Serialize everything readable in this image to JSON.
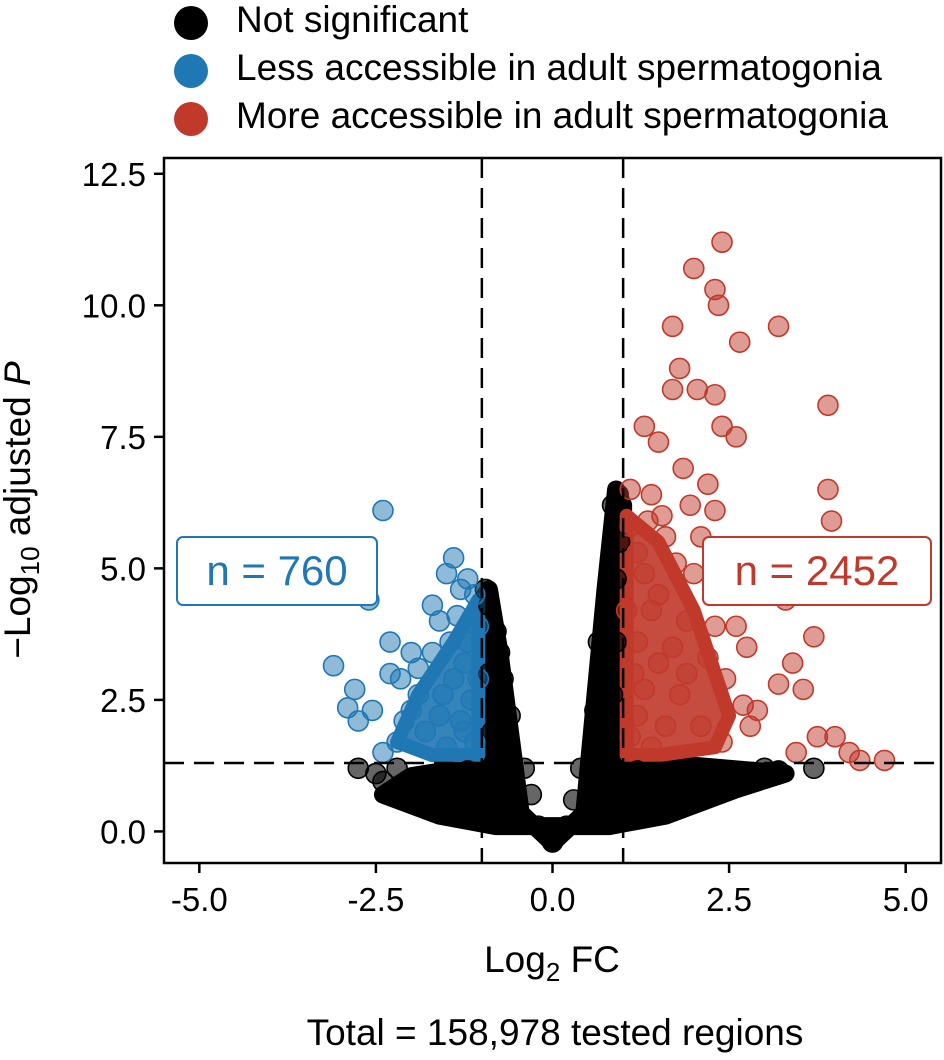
{
  "chart_data": {
    "type": "scatter",
    "title": "",
    "xlabel": "Log₂ FC",
    "ylabel": "−Log₁₀ adjusted P",
    "ylabel_parts": {
      "prefix": "−Log",
      "sub": "10",
      "middle": " adjusted ",
      "italic": "P"
    },
    "xlabel_parts": {
      "prefix": "Log",
      "sub": "2",
      "suffix": " FC"
    },
    "xlim": [
      -5.5,
      5.5
    ],
    "ylim": [
      -0.6,
      12.8
    ],
    "xticks": [
      "-5.0",
      "-2.5",
      "0.0",
      "2.5",
      "5.0"
    ],
    "yticks": [
      "0.0",
      "2.5",
      "5.0",
      "7.5",
      "10.0",
      "12.5"
    ],
    "thresholds": {
      "log2fc": [
        -1,
        1
      ],
      "neg_log10_padj": 1.3
    },
    "grid": false,
    "legend_position": "top",
    "series": [
      {
        "name": "Not significant",
        "color": "#000000",
        "points": [
          [
            0,
            -0.2
          ],
          [
            -0.2,
            0.1
          ],
          [
            0.2,
            0.1
          ],
          [
            -0.5,
            0.4
          ],
          [
            0.5,
            0.4
          ],
          [
            -0.8,
            3.8
          ],
          [
            -0.9,
            4.3
          ],
          [
            -0.95,
            4.6
          ],
          [
            -0.7,
            2.9
          ],
          [
            -0.6,
            2.2
          ],
          [
            -0.4,
            1.2
          ],
          [
            -0.3,
            0.7
          ],
          [
            -0.85,
            1.9
          ],
          [
            -0.9,
            3.0
          ],
          [
            -0.75,
            3.4
          ],
          [
            0.8,
            4.0
          ],
          [
            0.9,
            4.8
          ],
          [
            0.95,
            5.5
          ],
          [
            0.93,
            6.4
          ],
          [
            0.85,
            6.2
          ],
          [
            0.7,
            3.1
          ],
          [
            0.6,
            2.3
          ],
          [
            0.4,
            1.2
          ],
          [
            0.3,
            0.6
          ],
          [
            0.85,
            2.6
          ],
          [
            0.9,
            3.6
          ],
          [
            0.75,
            4.2
          ],
          [
            0.65,
            3.6
          ],
          [
            -1.2,
            1.15
          ],
          [
            -1.6,
            1.0
          ],
          [
            -2.0,
            0.8
          ],
          [
            -2.4,
            0.95
          ],
          [
            -2.75,
            1.2
          ],
          [
            -1.8,
            0.6
          ],
          [
            -1.4,
            0.4
          ],
          [
            -1.0,
            0.3
          ],
          [
            -2.2,
            1.2
          ],
          [
            -2.5,
            1.1
          ],
          [
            1.2,
            1.15
          ],
          [
            1.5,
            1.0
          ],
          [
            1.9,
            0.9
          ],
          [
            2.3,
            0.9
          ],
          [
            2.6,
            1.1
          ],
          [
            3.0,
            1.2
          ],
          [
            3.2,
            1.15
          ],
          [
            3.7,
            1.2
          ],
          [
            1.8,
            0.6
          ],
          [
            1.4,
            0.4
          ],
          [
            1.0,
            0.3
          ],
          [
            2.1,
            0.7
          ]
        ]
      },
      {
        "name": "Less accessible in adult spermatogonia",
        "color": "#1f77b4",
        "points": [
          [
            -2.4,
            6.1
          ],
          [
            -2.6,
            4.4
          ],
          [
            -3.1,
            3.15
          ],
          [
            -2.8,
            2.7
          ],
          [
            -2.9,
            2.35
          ],
          [
            -2.75,
            2.1
          ],
          [
            -2.55,
            2.3
          ],
          [
            -2.3,
            3.6
          ],
          [
            -2.3,
            3.0
          ],
          [
            -2.15,
            2.9
          ],
          [
            -2.0,
            3.4
          ],
          [
            -1.9,
            3.1
          ],
          [
            -1.7,
            4.3
          ],
          [
            -1.6,
            4.0
          ],
          [
            -1.4,
            5.2
          ],
          [
            -1.5,
            4.9
          ],
          [
            -1.3,
            4.6
          ],
          [
            -1.2,
            4.8
          ],
          [
            -1.1,
            4.5
          ],
          [
            -1.45,
            3.6
          ],
          [
            -1.25,
            3.2
          ],
          [
            -1.05,
            3.9
          ],
          [
            -1.15,
            2.5
          ],
          [
            -1.3,
            2.1
          ],
          [
            -1.6,
            2.2
          ],
          [
            -1.8,
            1.9
          ],
          [
            -2.0,
            2.3
          ],
          [
            -2.2,
            1.7
          ],
          [
            -2.4,
            1.5
          ],
          [
            -1.5,
            1.6
          ],
          [
            -1.1,
            1.7
          ],
          [
            -1.9,
            2.6
          ],
          [
            -1.7,
            3.4
          ],
          [
            -1.4,
            2.9
          ],
          [
            -1.2,
            3.6
          ],
          [
            -1.05,
            2.9
          ],
          [
            -1.35,
            4.1
          ],
          [
            -1.55,
            2.6
          ],
          [
            -2.1,
            2.1
          ],
          [
            -1.25,
            1.9
          ]
        ]
      },
      {
        "name": "More accessible in adult spermatogonia",
        "color": "#c0392b",
        "points": [
          [
            2.4,
            11.2
          ],
          [
            2.0,
            10.7
          ],
          [
            2.3,
            10.3
          ],
          [
            2.35,
            10.0
          ],
          [
            3.2,
            9.6
          ],
          [
            1.7,
            9.6
          ],
          [
            2.65,
            9.3
          ],
          [
            1.8,
            8.8
          ],
          [
            1.7,
            8.4
          ],
          [
            2.05,
            8.4
          ],
          [
            2.3,
            8.3
          ],
          [
            2.4,
            7.7
          ],
          [
            2.6,
            7.5
          ],
          [
            1.3,
            7.7
          ],
          [
            1.5,
            7.4
          ],
          [
            1.85,
            6.9
          ],
          [
            2.2,
            6.6
          ],
          [
            2.3,
            6.1
          ],
          [
            1.4,
            6.4
          ],
          [
            1.1,
            6.5
          ],
          [
            3.9,
            8.1
          ],
          [
            3.9,
            6.5
          ],
          [
            3.95,
            5.9
          ],
          [
            3.3,
            4.4
          ],
          [
            3.7,
            3.7
          ],
          [
            3.4,
            3.2
          ],
          [
            3.55,
            2.7
          ],
          [
            3.2,
            2.8
          ],
          [
            2.75,
            3.5
          ],
          [
            2.3,
            3.9
          ],
          [
            2.5,
            4.6
          ],
          [
            2.6,
            3.9
          ],
          [
            2.9,
            2.3
          ],
          [
            2.8,
            2.0
          ],
          [
            3.75,
            1.8
          ],
          [
            4.0,
            1.8
          ],
          [
            3.45,
            1.5
          ],
          [
            4.2,
            1.5
          ],
          [
            4.35,
            1.35
          ],
          [
            4.7,
            1.35
          ],
          [
            1.1,
            5.8
          ],
          [
            1.2,
            5.3
          ],
          [
            1.3,
            4.9
          ],
          [
            1.4,
            4.2
          ],
          [
            1.2,
            3.6
          ],
          [
            1.5,
            3.2
          ],
          [
            1.3,
            2.7
          ],
          [
            1.2,
            2.2
          ],
          [
            1.1,
            1.8
          ],
          [
            1.6,
            2.0
          ],
          [
            1.8,
            2.6
          ],
          [
            1.7,
            3.5
          ],
          [
            1.9,
            4.0
          ],
          [
            2.0,
            4.9
          ],
          [
            1.6,
            5.6
          ],
          [
            1.5,
            4.5
          ],
          [
            1.9,
            3.0
          ],
          [
            2.1,
            2.0
          ],
          [
            2.4,
            1.7
          ],
          [
            2.2,
            3.3
          ],
          [
            1.4,
            1.6
          ],
          [
            1.05,
            4.2
          ],
          [
            1.15,
            3.0
          ],
          [
            2.7,
            2.4
          ],
          [
            1.75,
            5.1
          ],
          [
            2.1,
            5.6
          ],
          [
            1.35,
            5.9
          ],
          [
            2.45,
            2.9
          ],
          [
            1.55,
            6.0
          ],
          [
            1.95,
            6.2
          ]
        ]
      }
    ],
    "annotations": [
      {
        "text": "n = 760",
        "color": "#1f77b4",
        "side": "left"
      },
      {
        "text": "n = 2452",
        "color": "#c0392b",
        "side": "right"
      }
    ],
    "caption": "Total = 158,978 tested regions"
  }
}
